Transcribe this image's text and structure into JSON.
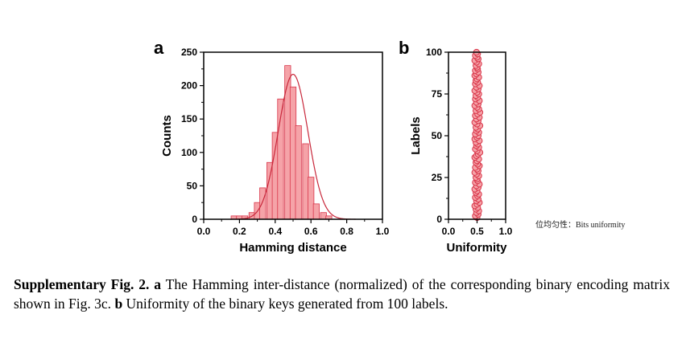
{
  "chart_data": [
    {
      "type": "bar",
      "panel": "a",
      "xlabel": "Hamming distance",
      "ylabel": "Counts",
      "xlim": [
        0.0,
        1.0
      ],
      "ylim": [
        0,
        250
      ],
      "xticks": [
        "0.0",
        "0.2",
        "0.4",
        "0.6",
        "0.8",
        "1.0"
      ],
      "yticks": [
        "0",
        "50",
        "100",
        "150",
        "200",
        "250"
      ],
      "bin_width": 0.0333,
      "bins": [
        {
          "x": 0.17,
          "count": 5
        },
        {
          "x": 0.2,
          "count": 5
        },
        {
          "x": 0.23,
          "count": 5
        },
        {
          "x": 0.27,
          "count": 10
        },
        {
          "x": 0.3,
          "count": 25
        },
        {
          "x": 0.33,
          "count": 47
        },
        {
          "x": 0.37,
          "count": 85
        },
        {
          "x": 0.4,
          "count": 130
        },
        {
          "x": 0.43,
          "count": 180
        },
        {
          "x": 0.47,
          "count": 230
        },
        {
          "x": 0.5,
          "count": 198
        },
        {
          "x": 0.53,
          "count": 140
        },
        {
          "x": 0.57,
          "count": 113
        },
        {
          "x": 0.6,
          "count": 63
        },
        {
          "x": 0.63,
          "count": 23
        },
        {
          "x": 0.67,
          "count": 10
        },
        {
          "x": 0.7,
          "count": 5
        }
      ],
      "fit": {
        "type": "gaussian",
        "mean": 0.5,
        "peak": 217,
        "sigma": 0.083
      },
      "bar_fill": "#f5a3a8",
      "bar_edge": "#d9364a",
      "fit_color": "#c8283b"
    },
    {
      "type": "scatter",
      "panel": "b",
      "xlabel": "Uniformity",
      "ylabel": "Labels",
      "xlim": [
        0.0,
        1.0
      ],
      "ylim": [
        0,
        100
      ],
      "xticks": [
        "0.0",
        "0.5",
        "1.0"
      ],
      "yticks": [
        "0",
        "25",
        "50",
        "75",
        "100"
      ],
      "x": [
        0.5,
        0.47,
        0.52,
        0.49,
        0.53,
        0.48,
        0.51,
        0.46,
        0.5,
        0.54,
        0.49,
        0.52,
        0.47,
        0.51,
        0.53,
        0.48,
        0.5,
        0.46,
        0.52,
        0.49,
        0.54,
        0.47,
        0.51,
        0.5,
        0.48,
        0.53,
        0.49,
        0.46,
        0.52,
        0.5,
        0.47,
        0.54,
        0.51,
        0.48,
        0.5,
        0.53,
        0.46,
        0.49,
        0.52,
        0.55,
        0.5,
        0.47,
        0.53,
        0.49,
        0.51,
        0.48,
        0.54,
        0.46,
        0.5,
        0.52,
        0.47,
        0.53,
        0.49,
        0.51,
        0.48,
        0.55,
        0.5,
        0.46,
        0.52,
        0.49,
        0.54,
        0.47,
        0.51,
        0.55,
        0.48,
        0.53,
        0.5,
        0.46,
        0.52,
        0.49,
        0.54,
        0.47,
        0.51,
        0.48,
        0.53,
        0.5,
        0.46,
        0.52,
        0.49,
        0.54,
        0.47,
        0.51,
        0.48,
        0.5,
        0.53,
        0.46,
        0.49,
        0.52,
        0.47,
        0.51,
        0.5,
        0.48,
        0.53,
        0.49,
        0.46,
        0.52,
        0.5,
        0.47,
        0.51,
        0.49
      ],
      "marker_fill": "#f5a3a8",
      "marker_edge": "#d9364a"
    }
  ],
  "panel_a_letter": "a",
  "panel_b_letter": "b",
  "side_note": "位均匀性：Bits uniformity",
  "caption": {
    "title": "Supplementary Fig. 2.",
    "a_letter": "a",
    "a_text": " The Hamming inter-distance (normalized) of the corresponding binary encoding matrix shown in Fig. 3c. ",
    "b_letter": "b",
    "b_text": " Uniformity of the binary keys generated from 100 labels."
  }
}
